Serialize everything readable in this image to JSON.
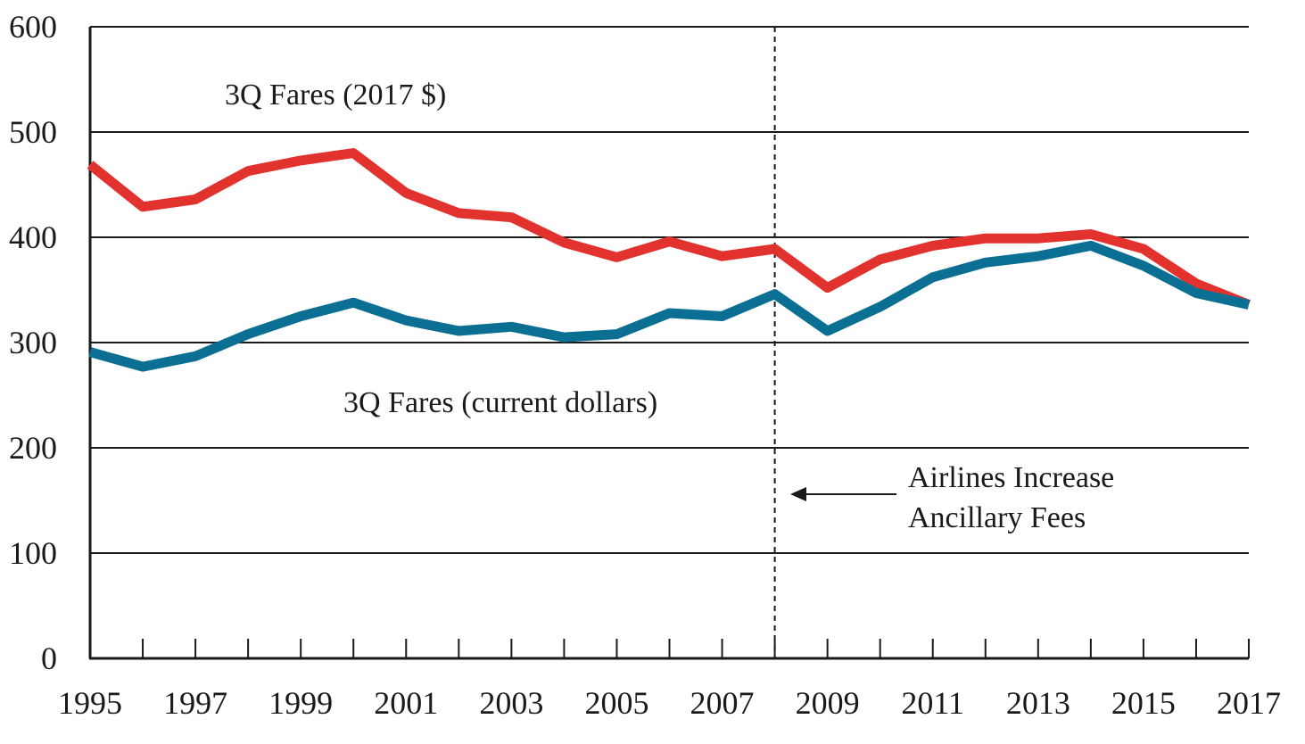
{
  "chart_data": {
    "type": "line",
    "title": "",
    "xlabel": "",
    "ylabel": "",
    "x": [
      1995,
      1996,
      1997,
      1998,
      1999,
      2000,
      2001,
      2002,
      2003,
      2004,
      2005,
      2006,
      2007,
      2008,
      2009,
      2010,
      2011,
      2012,
      2013,
      2014,
      2015,
      2016,
      2017
    ],
    "xlim": [
      1995,
      2017
    ],
    "ylim": [
      0,
      600
    ],
    "x_ticks": [
      "1995",
      "1997",
      "1999",
      "2001",
      "2003",
      "2005",
      "2007",
      "2009",
      "2011",
      "2013",
      "2015",
      "2017"
    ],
    "y_ticks": [
      "0",
      "100",
      "200",
      "300",
      "400",
      "500",
      "600"
    ],
    "grid": "horizontal",
    "series": [
      {
        "name": "3Q Fares (2017 $)",
        "color": "#e2322d",
        "values": [
          469,
          429,
          436,
          463,
          473,
          480,
          442,
          423,
          419,
          395,
          381,
          396,
          382,
          389,
          352,
          379,
          392,
          399,
          399,
          403,
          389,
          356,
          336
        ]
      },
      {
        "name": "3Q Fares (current dollars)",
        "color": "#0b6f93",
        "values": [
          291,
          277,
          287,
          308,
          325,
          338,
          321,
          311,
          315,
          305,
          308,
          328,
          325,
          346,
          311,
          334,
          362,
          376,
          382,
          392,
          373,
          347,
          336
        ]
      }
    ],
    "annotations": [
      {
        "text_line1": "Airlines Increase",
        "text_line2": "Ancillary Fees",
        "marker_x": 2008
      }
    ]
  }
}
